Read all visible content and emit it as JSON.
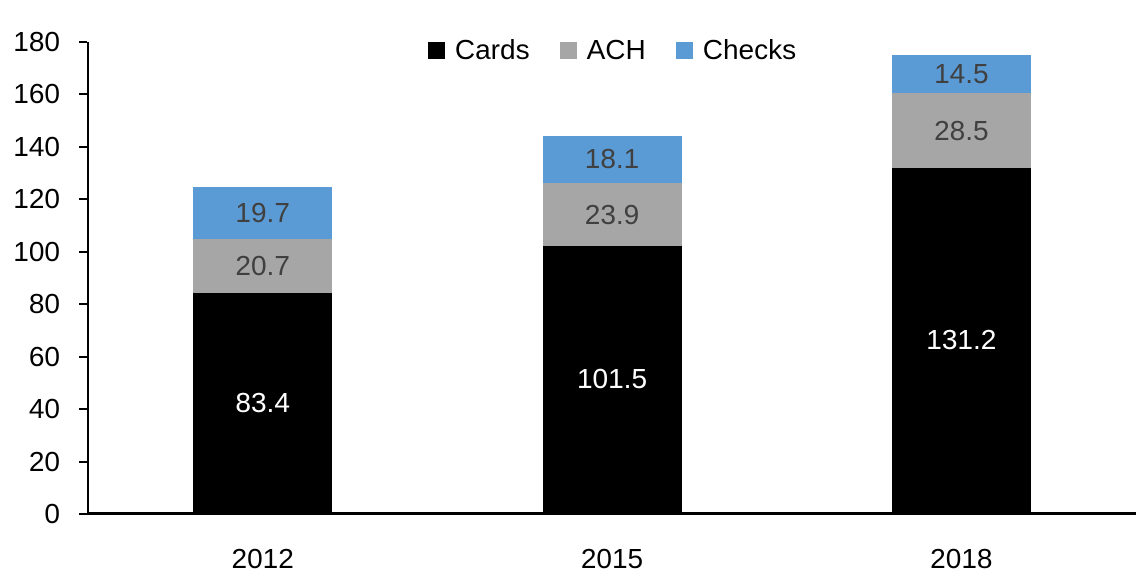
{
  "chart_data": {
    "type": "bar",
    "stacked": true,
    "title": "",
    "xlabel": "",
    "ylabel": "",
    "categories": [
      "2012",
      "2015",
      "2018"
    ],
    "series": [
      {
        "name": "Cards",
        "color": "#000000",
        "label_color": "#ffffff",
        "values": [
          83.4,
          101.5,
          131.2
        ]
      },
      {
        "name": "ACH",
        "color": "#a6a6a6",
        "label_color": "#404040",
        "values": [
          20.7,
          23.9,
          28.5
        ]
      },
      {
        "name": "Checks",
        "color": "#5b9bd5",
        "label_color": "#404040",
        "values": [
          19.7,
          18.1,
          14.5
        ]
      }
    ],
    "ylim": [
      0,
      180
    ],
    "y_ticks": [
      0,
      20,
      40,
      60,
      80,
      100,
      120,
      140,
      160,
      180
    ],
    "grid": false,
    "legend_position": "top-center",
    "axis_color": "#000000",
    "background_color": "#ffffff"
  }
}
